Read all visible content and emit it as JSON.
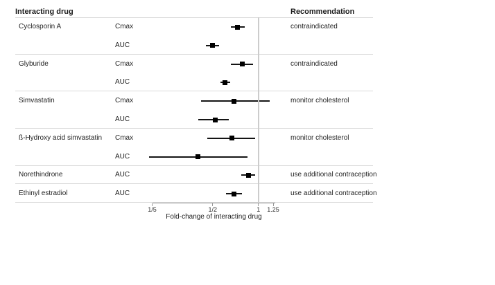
{
  "header": {
    "col_drug": "Interacting drug",
    "col_rec": "Recommendation"
  },
  "chart_data": {
    "type": "forest",
    "xlabel": "Fold-change of interacting drug",
    "x_scale": "log10",
    "x_axis_range": [
      0.19,
      1.3
    ],
    "reference_line": 1,
    "x_ticks": [
      {
        "value": 0.2,
        "label": "1/5"
      },
      {
        "value": 0.5,
        "label": "1/2"
      },
      {
        "value": 1,
        "label": "1"
      },
      {
        "value": 1.25,
        "label": "1.25"
      }
    ],
    "groups": [
      {
        "drug": "Cyclosporin A",
        "recommendation": "contraindicated",
        "rows": [
          {
            "metric": "Cmax",
            "estimate": 0.73,
            "ci_low": 0.66,
            "ci_high": 0.81
          },
          {
            "metric": "AUC",
            "estimate": 0.5,
            "ci_low": 0.45,
            "ci_high": 0.55
          }
        ]
      },
      {
        "drug": "Glyburide",
        "recommendation": "contraindicated",
        "rows": [
          {
            "metric": "Cmax",
            "estimate": 0.78,
            "ci_low": 0.66,
            "ci_high": 0.92
          },
          {
            "metric": "AUC",
            "estimate": 0.6,
            "ci_low": 0.56,
            "ci_high": 0.65
          }
        ]
      },
      {
        "drug": "Simvastatin",
        "recommendation": "monitor cholesterol",
        "rows": [
          {
            "metric": "Cmax",
            "estimate": 0.69,
            "ci_low": 0.42,
            "ci_high": 1.18
          },
          {
            "metric": "AUC",
            "estimate": 0.52,
            "ci_low": 0.4,
            "ci_high": 0.64
          }
        ]
      },
      {
        "drug": "ß-Hydroxy acid simvastatin",
        "recommendation": "monitor cholesterol",
        "rows": [
          {
            "metric": "Cmax",
            "estimate": 0.67,
            "ci_low": 0.46,
            "ci_high": 0.95
          },
          {
            "metric": "AUC",
            "estimate": 0.4,
            "ci_low": 0.19,
            "ci_high": 0.85
          }
        ]
      },
      {
        "drug": "Norethindrone",
        "recommendation": "use additional contraception",
        "rows": [
          {
            "metric": "AUC",
            "estimate": 0.86,
            "ci_low": 0.77,
            "ci_high": 0.95
          }
        ]
      },
      {
        "drug": "Ethinyl estradiol",
        "recommendation": "use additional contraception",
        "rows": [
          {
            "metric": "AUC",
            "estimate": 0.69,
            "ci_low": 0.61,
            "ci_high": 0.78
          }
        ]
      }
    ]
  },
  "colors": {
    "marker": "#000000",
    "ci_line": "#141414",
    "separator": "#d9d9d9",
    "reference_line": "#cccccc",
    "axis": "#9a9a9a",
    "text": "#1a1a1a"
  }
}
